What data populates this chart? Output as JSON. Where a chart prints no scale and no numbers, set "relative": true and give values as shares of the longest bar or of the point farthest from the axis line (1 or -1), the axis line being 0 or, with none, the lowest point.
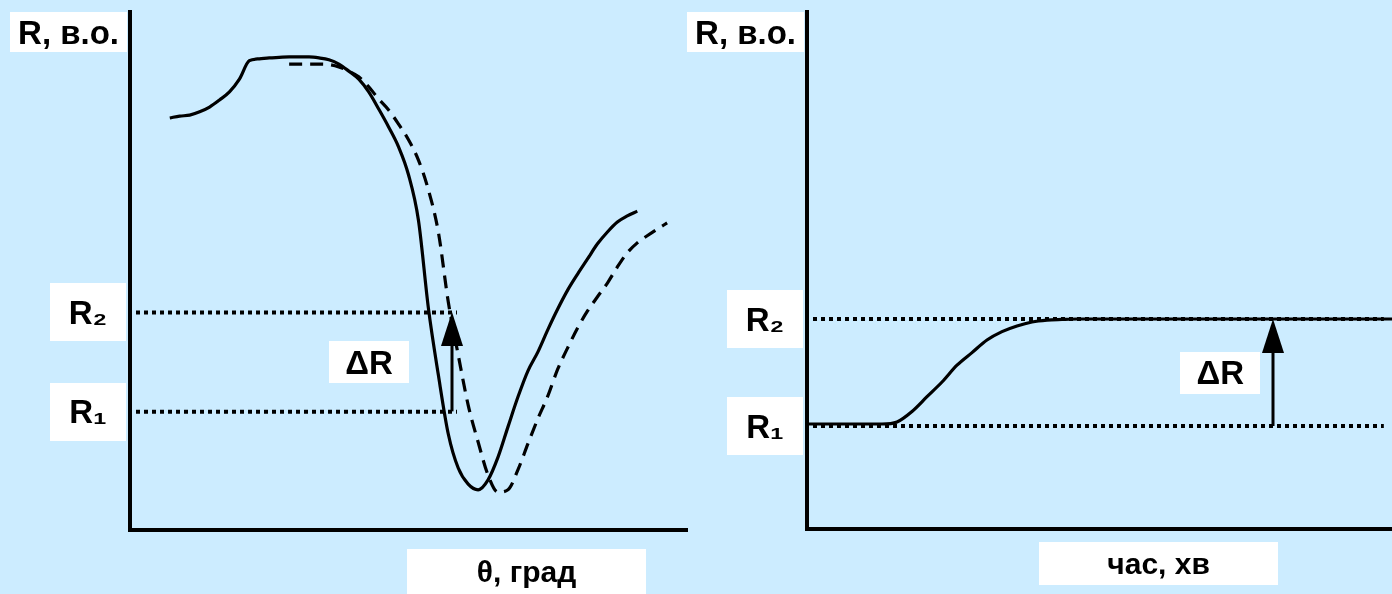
{
  "chart_data": [
    {
      "type": "line",
      "relative": true,
      "xlabel": "θ, град",
      "ylabel": "R, в.о.",
      "categories": [
        null,
        null,
        null,
        null,
        null,
        null,
        null,
        null,
        null,
        null,
        null,
        null,
        null,
        null,
        null,
        null,
        null,
        null,
        null,
        null,
        null,
        null,
        null,
        null,
        null,
        null,
        null,
        null,
        null,
        null,
        null,
        null,
        null,
        null,
        null,
        null,
        null,
        null,
        null,
        null,
        null,
        null,
        null,
        null,
        null,
        null,
        null,
        null,
        null,
        null,
        null,
        null,
        null,
        null,
        null,
        null,
        null
      ],
      "series": [
        {
          "color": "#000000",
          "line_style": "solid",
          "values": [
            null,
            null,
            null,
            null,
            0.871,
            0.875,
            0.877,
            0.884,
            0.894,
            0.909,
            0.926,
            0.953,
            0.992,
            0.996,
            0.998,
            0.999,
            1,
            1,
            1,
            0.998,
            0.994,
            0.985,
            0.97,
            0.953,
            0.926,
            0.89,
            0.852,
            0.81,
            0.751,
            0.655,
            0.469,
            0.328,
            0.203,
            0.131,
            0.097,
            0.085,
            0.106,
            0.154,
            0.218,
            0.281,
            0.336,
            0.376,
            0.423,
            0.467,
            0.507,
            0.541,
            0.573,
            0.605,
            0.63,
            0.651,
            0.664,
            0.674,
            null,
            null,
            null,
            null,
            null
          ]
        },
        {
          "color": "#000000",
          "line_style": "dashed",
          "values": [
            null,
            null,
            null,
            null,
            null,
            null,
            null,
            null,
            null,
            null,
            null,
            null,
            null,
            null,
            null,
            null,
            0.985,
            0.985,
            0.985,
            0.985,
            0.984,
            0.979,
            0.97,
            0.958,
            0.937,
            0.911,
            0.888,
            0.858,
            0.825,
            0.782,
            0.719,
            0.63,
            0.482,
            0.37,
            0.264,
            0.186,
            0.116,
            0.08,
            0.085,
            0.127,
            0.182,
            0.235,
            0.283,
            0.34,
            0.385,
            0.427,
            0.463,
            0.493,
            0.522,
            0.556,
            0.586,
            0.607,
            0.622,
            0.636,
            0.649,
            null,
            null
          ]
        }
      ],
      "ref_lines": [
        {
          "axis": "y",
          "value": 0.46,
          "label": "R₂",
          "color": "#000000",
          "line_style": "dotted"
        },
        {
          "axis": "y",
          "value": 0.25,
          "label": "R₁",
          "color": "#000000",
          "line_style": "dotted"
        }
      ],
      "annotations": [
        "ΔR"
      ]
    },
    {
      "type": "line",
      "relative": true,
      "xlabel": "час, хв",
      "ylabel": "R, в.о.",
      "categories": [
        null,
        null,
        null,
        null,
        null,
        null,
        null,
        null,
        null,
        null,
        null,
        null,
        null,
        null,
        null,
        null,
        null,
        null,
        null,
        null,
        null,
        null,
        null,
        null,
        null,
        null,
        null,
        null,
        null,
        null,
        null,
        null,
        null,
        null,
        null,
        null,
        null,
        null,
        null,
        null
      ],
      "series": [
        {
          "color": "#000000",
          "line_style": "solid",
          "values": [
            0.5,
            0.5,
            0.5,
            0.5,
            0.5,
            0.5,
            0.51,
            0.56,
            0.63,
            0.7,
            0.78,
            0.84,
            0.9,
            0.94,
            0.967,
            0.986,
            0.995,
            0.998,
            1,
            1,
            1,
            1,
            1,
            1,
            1,
            1,
            1,
            1,
            1,
            1,
            1,
            1,
            1,
            1,
            1,
            1,
            1,
            1,
            1,
            1
          ]
        }
      ],
      "ref_lines": [
        {
          "axis": "y",
          "value": 1,
          "label": "R₂",
          "color": "#000000",
          "line_style": "dotted"
        },
        {
          "axis": "y",
          "value": 0.49,
          "label": "R₁",
          "color": "#000000",
          "line_style": "dotted"
        }
      ],
      "annotations": [
        "ΔR"
      ]
    }
  ]
}
